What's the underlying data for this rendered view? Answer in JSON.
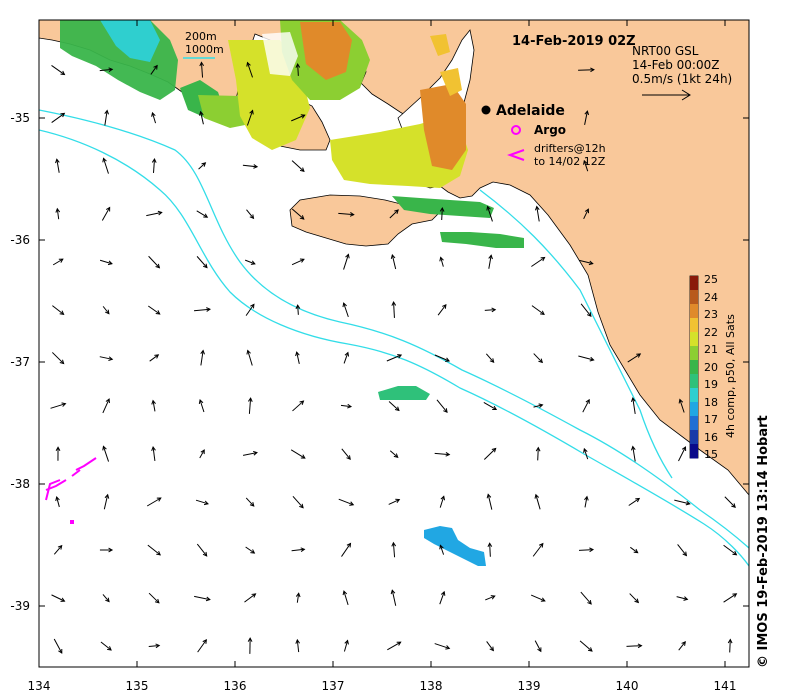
{
  "map": {
    "title": "14-Feb-2019 02Z",
    "product_header": "NRT00 GSL",
    "product_time": "14-Feb 00:00Z",
    "vector_scale_label": "0.5m/s (1kt 24h)",
    "isobath_200": "200m",
    "isobath_1000": "1000m",
    "city_label": "Adelaide",
    "argo_label": "Argo",
    "drifters_label_1": "drifters@12h",
    "drifters_label_2": "to 14/02 12Z",
    "sst_colorbar_title": "4h comp, p50, All Sats",
    "credit": "© IMOS 19-Feb-2019 13:14 Hobart",
    "x_ticks": [
      "134",
      "135",
      "136",
      "137",
      "138",
      "139",
      "140",
      "141"
    ],
    "y_ticks": [
      "-35",
      "-36",
      "-37",
      "-38",
      "-39"
    ],
    "colorbar_ticks": [
      "25",
      "24",
      "23",
      "22",
      "21",
      "20",
      "19",
      "18",
      "17",
      "16",
      "15"
    ],
    "colors": {
      "land": "#f9c89a",
      "isobath": "#33dde8",
      "drifter": "#ff00ff",
      "arrow": "#000000",
      "sst_scale": [
        "#0a0a8a",
        "#1a3aa8",
        "#1f6fd4",
        "#21a7e3",
        "#2fcfcf",
        "#2fc17a",
        "#39b54a",
        "#8ccf32",
        "#d5e12a",
        "#f1c232",
        "#e08a2a",
        "#b85a1c",
        "#8a1a0a"
      ]
    }
  }
}
